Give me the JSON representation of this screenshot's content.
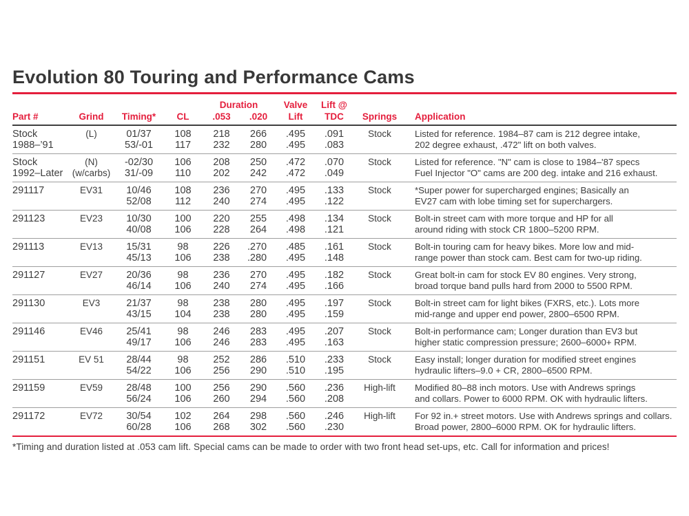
{
  "page": {
    "title": "Evolution 80 Touring and Performance Cams",
    "footnote": "*Timing and duration listed at .053 cam lift. Special cams can be made to order with two front head set-ups, etc. Call for information and prices!",
    "accent_color": "#e41e3c",
    "text_color": "#3d3d3d",
    "row_divider_color": "#9e9e9e",
    "header_divider_color": "#3f3f3f"
  },
  "table": {
    "header": {
      "part": "Part #",
      "grind": "Grind",
      "timing": "Timing*",
      "cl": "CL",
      "duration": "Duration",
      "d053": ".053",
      "d020": ".020",
      "valve1": "Valve",
      "valve2": "Lift",
      "tdc1": "Lift @",
      "tdc2": "TDC",
      "springs": "Springs",
      "application": "Application"
    },
    "rows": [
      {
        "part1": "Stock",
        "part2": "1988–’91",
        "grind1": "(L)",
        "grind2": "",
        "timing1": "01/37",
        "timing2": "53/-01",
        "cl1": "108",
        "cl2": "117",
        "d053_1": "218",
        "d053_2": "232",
        "d020_1": "266",
        "d020_2": "280",
        "lift1": ".495",
        "lift2": ".495",
        "tdc1": ".091",
        "tdc2": ".083",
        "springs": "Stock",
        "app1": "Listed for reference. 1984–87 cam is 212 degree intake,",
        "app2": "202 degree exhaust, .472\" lift on both valves."
      },
      {
        "part1": "Stock",
        "part2": "1992–Later",
        "grind1": "(N)",
        "grind2": "(w/carbs)",
        "timing1": "-02/30",
        "timing2": "31/-09",
        "cl1": "106",
        "cl2": "110",
        "d053_1": "208",
        "d053_2": "202",
        "d020_1": "250",
        "d020_2": "242",
        "lift1": ".472",
        "lift2": ".472",
        "tdc1": ".070",
        "tdc2": ".049",
        "springs": "Stock",
        "app1": "Listed for reference. \"N\" cam is close to 1984–'87 specs",
        "app2": "Fuel Injector \"O\" cams are 200 deg. intake and 216 exhaust."
      },
      {
        "part1": "291117",
        "part2": "",
        "grind1": "EV31",
        "grind2": "",
        "timing1": "10/46",
        "timing2": "52/08",
        "cl1": "108",
        "cl2": "112",
        "d053_1": "236",
        "d053_2": "240",
        "d020_1": "270",
        "d020_2": "274",
        "lift1": ".495",
        "lift2": ".495",
        "tdc1": ".133",
        "tdc2": ".122",
        "springs": "Stock",
        "app1": "*Super power for supercharged engines; Basically an",
        "app2": "EV27 cam with lobe timing set for superchargers."
      },
      {
        "part1": "291123",
        "part2": "",
        "grind1": "EV23",
        "grind2": "",
        "timing1": "10/30",
        "timing2": "40/08",
        "cl1": "100",
        "cl2": "106",
        "d053_1": "220",
        "d053_2": "228",
        "d020_1": "255",
        "d020_2": "264",
        "lift1": ".498",
        "lift2": ".498",
        "tdc1": ".134",
        "tdc2": ".121",
        "springs": "Stock",
        "app1": "Bolt-in street cam with more torque and HP for all",
        "app2": "around riding with stock CR 1800–5200 RPM."
      },
      {
        "part1": "291113",
        "part2": "",
        "grind1": "EV13",
        "grind2": "",
        "timing1": "15/31",
        "timing2": "45/13",
        "cl1": "98",
        "cl2": "106",
        "d053_1": "226",
        "d053_2": "238",
        "dot1": ".",
        "dot2": ".",
        "d020_1": "270",
        "d020_2": "280",
        "lift1": ".485",
        "lift2": ".495",
        "tdc1": ".161",
        "tdc2": ".148",
        "springs": "Stock",
        "app1": "Bolt-in touring cam for heavy bikes. More low and mid-",
        "app2": "range power than stock cam. Best cam for two-up riding."
      },
      {
        "part1": "291127",
        "part2": "",
        "grind1": "EV27",
        "grind2": "",
        "timing1": "20/36",
        "timing2": "46/14",
        "cl1": "98",
        "cl2": "106",
        "d053_1": "236",
        "d053_2": "240",
        "d020_1": "270",
        "d020_2": "274",
        "lift1": ".495",
        "lift2": ".495",
        "tdc1": ".182",
        "tdc2": ".166",
        "springs": "Stock",
        "app1": "Great bolt-in cam for stock EV 80 engines. Very strong,",
        "app2": "broad torque band pulls hard from 2000 to 5500 RPM."
      },
      {
        "part1": "291130",
        "part2": "",
        "grind1": "EV3",
        "grind2": "",
        "timing1": "21/37",
        "timing2": "43/15",
        "cl1": "98",
        "cl2": "104",
        "d053_1": "238",
        "d053_2": "238",
        "d020_1": "280",
        "d020_2": "280",
        "lift1": ".495",
        "lift2": ".495",
        "tdc1": ".197",
        "tdc2": ".159",
        "springs": "Stock",
        "app1": "Bolt-in street cam for light bikes (FXRS, etc.). Lots more",
        "app2": "mid-range and upper end power, 2800–6500 RPM."
      },
      {
        "part1": "291146",
        "part2": "",
        "grind1": "EV46",
        "grind2": "",
        "timing1": "25/41",
        "timing2": "49/17",
        "cl1": "98",
        "cl2": "106",
        "d053_1": "246",
        "d053_2": "246",
        "d020_1": "283",
        "d020_2": "283",
        "lift1": ".495",
        "lift2": ".495",
        "tdc1": ".207",
        "tdc2": ".163",
        "springs": "Stock",
        "app1": "Bolt-in performance cam; Longer duration than EV3 but",
        "app2": "higher static compression pressure; 2600–6000+ RPM."
      },
      {
        "part1": "291151",
        "part2": "",
        "grind1": "EV 51",
        "grind2": "",
        "timing1": "28/44",
        "timing2": "54/22",
        "cl1": "98",
        "cl2": "106",
        "d053_1": "252",
        "d053_2": "256",
        "d020_1": "286",
        "d020_2": "290",
        "lift1": ".510",
        "lift2": ".510",
        "tdc1": ".233",
        "tdc2": ".195",
        "springs": "Stock",
        "app1": "Easy install; longer duration for modified street engines",
        "app2": "hydraulic lifters–9.0 + CR, 2800–6500 RPM."
      },
      {
        "part1": "291159",
        "part2": "",
        "grind1": "EV59",
        "grind2": "",
        "timing1": "28/48",
        "timing2": "56/24",
        "cl1": "100",
        "cl2": "106",
        "d053_1": "256",
        "d053_2": "260",
        "d020_1": "290",
        "d020_2": "294",
        "lift1": ".560",
        "lift2": ".560",
        "tdc1": ".236",
        "tdc2": ".208",
        "springs": "High-lift",
        "app1": "Modified 80–88 inch motors. Use with Andrews springs",
        "app2": "and collars. Power to 6000 RPM. OK with hydraulic lifters."
      },
      {
        "part1": "291172",
        "part2": "",
        "grind1": "EV72",
        "grind2": "",
        "timing1": "30/54",
        "timing2": "60/28",
        "cl1": "102",
        "cl2": "106",
        "d053_1": "264",
        "d053_2": "268",
        "d020_1": "298",
        "d020_2": "302",
        "lift1": ".560",
        "lift2": ".560",
        "tdc1": ".246",
        "tdc2": ".230",
        "springs": "High-lift",
        "app1": "For 92 in.+ street motors. Use with Andrews springs and collars.",
        "app2": "Broad power, 2800–6000 RPM. OK for hydraulic lifters."
      }
    ]
  }
}
